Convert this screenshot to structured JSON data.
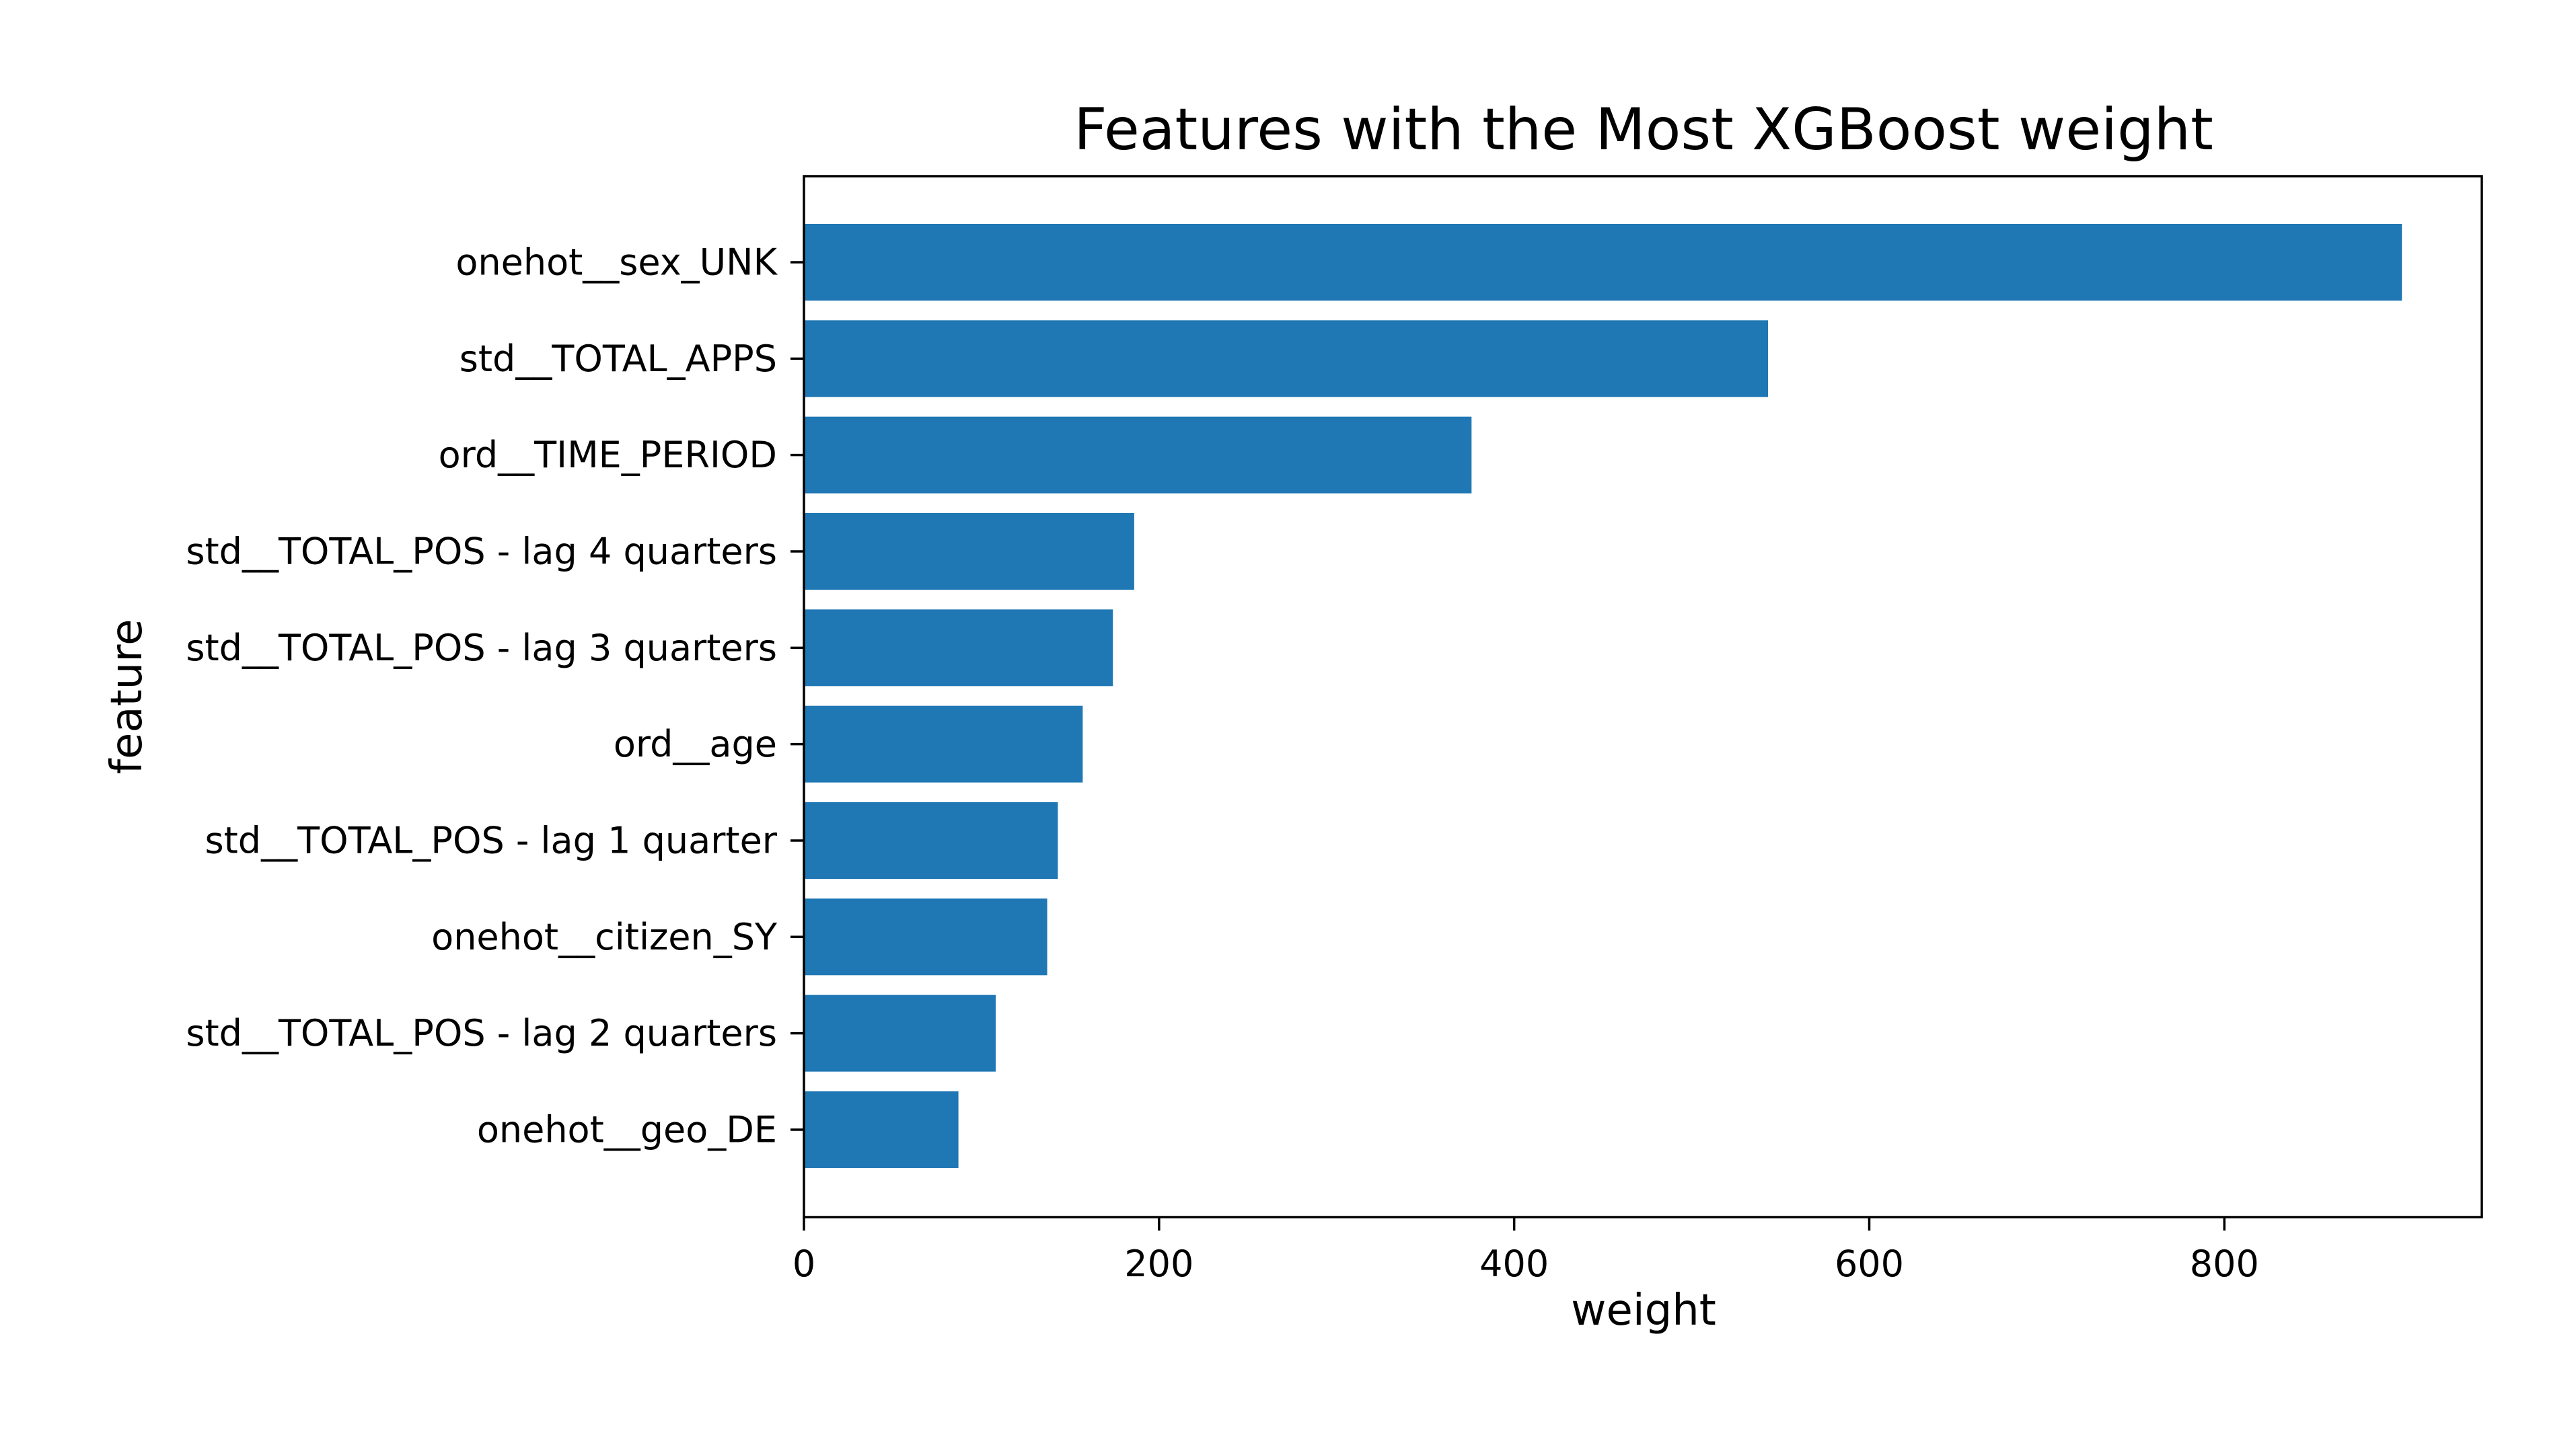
{
  "chart_data": {
    "type": "bar",
    "orientation": "horizontal",
    "title": "Features with the Most XGBoost weight",
    "xlabel": "weight",
    "ylabel": "feature",
    "xlim": [
      0,
      945
    ],
    "xticks": [
      0,
      200,
      400,
      600,
      800
    ],
    "grid": false,
    "categories": [
      "onehot__sex_UNK",
      "std__TOTAL_APPS",
      "ord__TIME_PERIOD",
      "std__TOTAL_POS - lag 4 quarters",
      "std__TOTAL_POS - lag 3 quarters",
      "ord__age",
      "std__TOTAL_POS - lag 1 quarter",
      "onehot__citizen_SY",
      "std__TOTAL_POS - lag 2 quarters",
      "onehot__geo_DE"
    ],
    "values": [
      900,
      543,
      376,
      186,
      174,
      157,
      143,
      137,
      108,
      87
    ],
    "bar_color": "#1f77b4"
  }
}
